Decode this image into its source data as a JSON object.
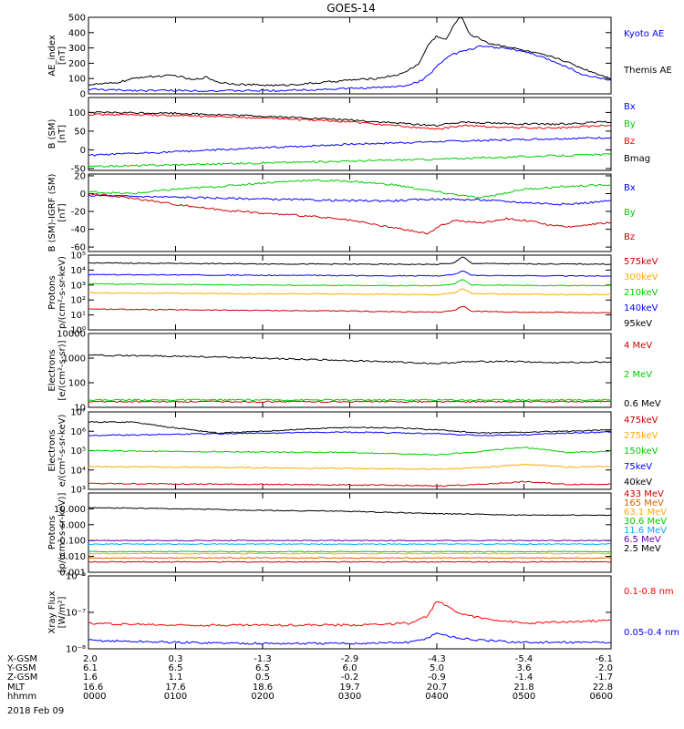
{
  "title": "GOES-14",
  "date_label": "2018 Feb 09",
  "chart_data": [
    {
      "id": "ae",
      "type": "line",
      "ylabel": [
        "AE_index",
        "[nT]"
      ],
      "ylim": [
        0,
        500
      ],
      "log": false,
      "yticks": [
        [
          0,
          "0"
        ],
        [
          100,
          "100"
        ],
        [
          200,
          "200"
        ],
        [
          300,
          "300"
        ],
        [
          400,
          "400"
        ],
        [
          500,
          "500"
        ]
      ],
      "series": [
        {
          "name": "Kyoto AE",
          "color": "#0000ff",
          "x": [
            0,
            0.3,
            0.6,
            1,
            1.4,
            1.8,
            2.2,
            2.6,
            3,
            3.3,
            3.6,
            3.8,
            3.9,
            4,
            4.1,
            4.2,
            4.3,
            4.5,
            4.8,
            5.1,
            5.4,
            5.7,
            6
          ],
          "y": [
            30,
            25,
            22,
            22,
            20,
            20,
            22,
            28,
            35,
            40,
            50,
            80,
            120,
            180,
            230,
            260,
            280,
            310,
            300,
            260,
            200,
            120,
            90
          ]
        },
        {
          "name": "Themis AE",
          "color": "#000000",
          "x": [
            0,
            0.3,
            0.6,
            1,
            1.2,
            1.35,
            1.5,
            1.8,
            2.2,
            2.6,
            3,
            3.3,
            3.6,
            3.8,
            3.9,
            4,
            4.1,
            4.2,
            4.25,
            4.3,
            4.35,
            4.4,
            4.5,
            4.6,
            4.8,
            5.1,
            5.4,
            5.7,
            6
          ],
          "y": [
            60,
            70,
            110,
            120,
            90,
            110,
            75,
            60,
            55,
            70,
            90,
            100,
            130,
            200,
            320,
            380,
            350,
            450,
            500,
            490,
            420,
            380,
            360,
            330,
            310,
            270,
            230,
            160,
            100
          ]
        }
      ]
    },
    {
      "id": "b_sm",
      "type": "line",
      "ylabel": [
        "B (SM)",
        "[nT]"
      ],
      "ylim": [
        -55,
        140
      ],
      "log": false,
      "yticks": [
        [
          -50,
          "-50"
        ],
        [
          0,
          "0"
        ],
        [
          50,
          "50"
        ],
        [
          100,
          "100"
        ]
      ],
      "series": [
        {
          "name": "Bx",
          "color": "#0000ff",
          "x": [
            0,
            1,
            2,
            3,
            4,
            5,
            6
          ],
          "y": [
            -15,
            -5,
            5,
            15,
            22,
            28,
            33
          ]
        },
        {
          "name": "By",
          "color": "#00cc00",
          "x": [
            0,
            1,
            2,
            3,
            4,
            5,
            6
          ],
          "y": [
            -45,
            -40,
            -35,
            -30,
            -25,
            -18,
            -12
          ]
        },
        {
          "name": "Bz",
          "color": "#ff0000",
          "x": [
            0,
            1,
            2,
            3,
            3.5,
            4,
            4.3,
            4.8,
            5.3,
            6
          ],
          "y": [
            95,
            92,
            85,
            75,
            65,
            55,
            65,
            60,
            58,
            65
          ]
        },
        {
          "name": "Bmag",
          "color": "#000000",
          "x": [
            0,
            1,
            2,
            3,
            3.5,
            4,
            4.3,
            4.8,
            5.3,
            6
          ],
          "y": [
            100,
            98,
            90,
            80,
            72,
            65,
            75,
            70,
            68,
            75
          ]
        }
      ]
    },
    {
      "id": "b_igrf",
      "type": "line",
      "ylabel": [
        "B (SM)-IGRF (SM)",
        "[nT]"
      ],
      "ylim": [
        -65,
        22
      ],
      "log": false,
      "yticks": [
        [
          -60,
          "-60"
        ],
        [
          -40,
          "-40"
        ],
        [
          -20,
          "-20"
        ],
        [
          0,
          "0"
        ],
        [
          20,
          "20"
        ]
      ],
      "series": [
        {
          "name": "Bx",
          "color": "#0000ff",
          "x": [
            0,
            1,
            2,
            3,
            3.5,
            4,
            4.5,
            5,
            5.5,
            6
          ],
          "y": [
            -2,
            -4,
            -6,
            -8,
            -8,
            -6,
            -7,
            -10,
            -12,
            -8
          ]
        },
        {
          "name": "By",
          "color": "#00cc00",
          "x": [
            0,
            0.5,
            1,
            1.5,
            2,
            2.5,
            3,
            3.5,
            4,
            4.5,
            5,
            5.5,
            6
          ],
          "y": [
            2,
            0,
            5,
            8,
            12,
            15,
            14,
            10,
            2,
            -5,
            5,
            8,
            10
          ]
        },
        {
          "name": "Bz",
          "color": "#cc0000",
          "x": [
            0,
            0.5,
            1,
            1.5,
            2,
            2.5,
            3,
            3.3,
            3.6,
            3.9,
            4,
            4.2,
            4.5,
            4.8,
            5,
            5.3,
            5.5,
            5.7,
            6
          ],
          "y": [
            0,
            -5,
            -12,
            -18,
            -22,
            -25,
            -30,
            -35,
            -40,
            -45,
            -38,
            -30,
            -33,
            -28,
            -30,
            -35,
            -38,
            -35,
            -32
          ]
        }
      ]
    },
    {
      "id": "protons",
      "type": "line",
      "ylabel": [
        "Protons",
        "p/(cm²-s-sr-keV)"
      ],
      "ylim": [
        1,
        100000
      ],
      "log": true,
      "yticks": [
        [
          1,
          "10⁰"
        ],
        [
          10,
          "10¹"
        ],
        [
          100,
          "10²"
        ],
        [
          1000,
          "10³"
        ],
        [
          10000,
          "10⁴"
        ],
        [
          100000,
          "10⁵"
        ]
      ],
      "series": [
        {
          "name": "575keV",
          "color": "#cc0000",
          "x": [
            0,
            1,
            2,
            3,
            4,
            4.2,
            4.3,
            4.4,
            5,
            6
          ],
          "y": [
            25,
            22,
            20,
            18,
            15,
            20,
            40,
            18,
            15,
            14
          ]
        },
        {
          "name": "300keV",
          "color": "#ffaa00",
          "x": [
            0,
            1,
            2,
            3,
            4,
            4.2,
            4.3,
            4.4,
            5,
            6
          ],
          "y": [
            300,
            280,
            260,
            250,
            230,
            300,
            600,
            260,
            240,
            230
          ]
        },
        {
          "name": "210keV",
          "color": "#00cc00",
          "x": [
            0,
            1,
            2,
            3,
            4,
            4.2,
            4.3,
            4.4,
            5,
            6
          ],
          "y": [
            1200,
            1100,
            1000,
            950,
            900,
            1200,
            2500,
            1000,
            950,
            900
          ]
        },
        {
          "name": "140keV",
          "color": "#0000ff",
          "x": [
            0,
            1,
            2,
            3,
            4,
            4.2,
            4.3,
            4.4,
            5,
            6
          ],
          "y": [
            5000,
            4800,
            4500,
            4300,
            4100,
            5000,
            9000,
            4500,
            4200,
            4000
          ]
        },
        {
          "name": "95keV",
          "color": "#000000",
          "x": [
            0,
            1,
            2,
            3,
            4,
            4.2,
            4.3,
            4.4,
            5,
            6
          ],
          "y": [
            30000,
            28000,
            26000,
            25000,
            24000,
            30000,
            80000,
            28000,
            26000,
            25000
          ]
        }
      ]
    },
    {
      "id": "electrons_mev",
      "type": "line",
      "ylabel": [
        "Electrons",
        "[e/(cm²-s-sr)]"
      ],
      "ylim": [
        10,
        10000
      ],
      "log": true,
      "yticks": [
        [
          10,
          "10"
        ],
        [
          100,
          "100"
        ],
        [
          1000,
          "1000"
        ],
        [
          10000,
          "10000"
        ]
      ],
      "series": [
        {
          "name": "4 MeV",
          "color": "#cc0000",
          "x": [
            0,
            6
          ],
          "y": [
            17,
            17
          ]
        },
        {
          "name": "2 MeV",
          "color": "#00cc00",
          "x": [
            0,
            6
          ],
          "y": [
            20,
            20
          ]
        },
        {
          "name": "0.6 MeV",
          "color": "#000000",
          "x": [
            0,
            1,
            2,
            3,
            3.5,
            4,
            4.3,
            4.8,
            5.3,
            6
          ],
          "y": [
            1300,
            1200,
            1000,
            800,
            700,
            600,
            700,
            750,
            650,
            700
          ]
        }
      ]
    },
    {
      "id": "electrons_kev",
      "type": "line",
      "ylabel": [
        "Electrons",
        "e/(cm²-s-sr-keV)"
      ],
      "ylim": [
        1000,
        10000000
      ],
      "log": true,
      "yticks": [
        [
          1000,
          "10³"
        ],
        [
          10000,
          "10⁴"
        ],
        [
          100000,
          "10⁵"
        ],
        [
          1000000,
          "10⁶"
        ],
        [
          10000000,
          "10⁷"
        ]
      ],
      "series": [
        {
          "name": "475keV",
          "color": "#cc0000",
          "x": [
            0,
            1,
            2,
            3,
            4,
            4.5,
            5,
            5.5,
            6
          ],
          "y": [
            2000,
            1900,
            1800,
            1700,
            1500,
            1800,
            2500,
            1800,
            1900
          ]
        },
        {
          "name": "275keV",
          "color": "#ffaa00",
          "x": [
            0,
            1,
            2,
            3,
            4,
            4.5,
            5,
            5.5,
            6
          ],
          "y": [
            15000,
            14000,
            13000,
            12000,
            11000,
            13000,
            20000,
            14000,
            15000
          ]
        },
        {
          "name": "150keV",
          "color": "#00cc00",
          "x": [
            0,
            1,
            2,
            3,
            4,
            4.5,
            5,
            5.5,
            6
          ],
          "y": [
            100000,
            90000,
            85000,
            80000,
            60000,
            90000,
            150000,
            80000,
            90000
          ]
        },
        {
          "name": "75keV",
          "color": "#0000ff",
          "x": [
            0,
            1,
            2,
            3,
            4,
            4.5,
            5,
            5.5,
            6
          ],
          "y": [
            600000,
            700000,
            800000,
            900000,
            750000,
            600000,
            650000,
            800000,
            900000
          ]
        },
        {
          "name": "40keV",
          "color": "#000000",
          "x": [
            0,
            0.5,
            1,
            1.5,
            2,
            2.5,
            3,
            3.5,
            4,
            4.5,
            5,
            5.5,
            6
          ],
          "y": [
            3000000,
            3000000,
            1500000,
            800000,
            1000000,
            1300000,
            1600000,
            1500000,
            1200000,
            800000,
            900000,
            1000000,
            1200000
          ]
        }
      ]
    },
    {
      "id": "protons_mev",
      "type": "line",
      "ylabel": [
        "Protons",
        "[p/(cm²-s-sr-keV)]"
      ],
      "ylim": [
        0.001,
        100
      ],
      "log": true,
      "yticks": [
        [
          0.001,
          "0.001"
        ],
        [
          0.01,
          "0.010"
        ],
        [
          0.1,
          "0.100"
        ],
        [
          1,
          "1.000"
        ],
        [
          10,
          "10.000"
        ]
      ],
      "series": [
        {
          "name": "433 MeV",
          "color": "#cc0000",
          "x": [
            0,
            6
          ],
          "y": [
            0.0045,
            0.0045
          ]
        },
        {
          "name": "165 MeV",
          "color": "#cc6600",
          "x": [
            0,
            6
          ],
          "y": [
            0.008,
            0.008
          ]
        },
        {
          "name": "63.1 MeV",
          "color": "#ffaa00",
          "x": [
            0,
            6
          ],
          "y": [
            0.015,
            0.015
          ]
        },
        {
          "name": "30.6 MeV",
          "color": "#00cc00",
          "x": [
            0,
            6
          ],
          "y": [
            0.02,
            0.02
          ]
        },
        {
          "name": "11.6 MeV",
          "color": "#00aaff",
          "x": [
            0,
            6
          ],
          "y": [
            0.06,
            0.06
          ]
        },
        {
          "name": "6.5 MeV",
          "color": "#6600aa",
          "x": [
            0,
            6
          ],
          "y": [
            0.1,
            0.1
          ]
        },
        {
          "name": "2.5 MeV",
          "color": "#000000",
          "x": [
            0,
            1,
            2,
            3,
            4,
            5,
            6
          ],
          "y": [
            12,
            10,
            8,
            7,
            5,
            4,
            4
          ]
        }
      ]
    },
    {
      "id": "xray",
      "type": "line",
      "ylabel": [
        "Xray Flux",
        "[W/m²]"
      ],
      "ylim": [
        1e-08,
        1e-06
      ],
      "log": true,
      "yticks": [
        [
          1e-08,
          "10⁻⁸"
        ],
        [
          1e-07,
          "10⁻⁷"
        ],
        [
          1e-06,
          "10⁻⁶"
        ]
      ],
      "series": [
        {
          "name": "0.1-0.8 nm",
          "color": "#ff0000",
          "x": [
            0,
            1,
            2,
            3,
            3.7,
            3.9,
            4,
            4.1,
            4.3,
            4.5,
            5,
            6
          ],
          "y": [
            5e-08,
            4.5e-08,
            4.5e-08,
            4.5e-08,
            5e-08,
            8e-08,
            2.2e-07,
            1.5e-07,
            9e-08,
            7e-08,
            5e-08,
            6e-08
          ]
        },
        {
          "name": "0.05-0.4 nm",
          "color": "#0000ff",
          "x": [
            0,
            1,
            2,
            3,
            3.7,
            3.9,
            4,
            4.1,
            4.3,
            4.5,
            5,
            6
          ],
          "y": [
            1.7e-08,
            1.5e-08,
            1.4e-08,
            1.4e-08,
            1.5e-08,
            2e-08,
            2.8e-08,
            2.3e-08,
            1.9e-08,
            1.7e-08,
            1.5e-08,
            1.5e-08
          ]
        }
      ]
    }
  ],
  "time_axis": {
    "rows": [
      {
        "label": "X-GSM",
        "values": [
          "2.0",
          "0.3",
          "-1.3",
          "-2.9",
          "-4.3",
          "-5.4",
          "-6.1"
        ]
      },
      {
        "label": "Y-GSM",
        "values": [
          "6.1",
          "6.5",
          "6.5",
          "6.0",
          "5.0",
          "3.6",
          "2.0"
        ]
      },
      {
        "label": "Z-GSM",
        "values": [
          "1.6",
          "1.1",
          "0.5",
          "-0.2",
          "-0.9",
          "-1.4",
          "-1.7"
        ]
      },
      {
        "label": "MLT",
        "values": [
          "16.6",
          "17.6",
          "18.6",
          "19.7",
          "20.7",
          "21.8",
          "22.8"
        ]
      },
      {
        "label": "hhmm",
        "values": [
          "0000",
          "0100",
          "0200",
          "0300",
          "0400",
          "0500",
          "0600"
        ]
      }
    ]
  }
}
